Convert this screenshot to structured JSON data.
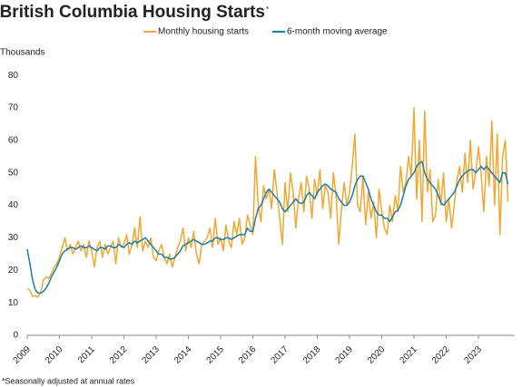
{
  "chart_data": {
    "type": "line",
    "title": "British Columbia Housing Starts",
    "title_note": "*",
    "y_label": "Thousands",
    "footnote": "*Seasonally adjusted at annual rates",
    "categories": [
      "2009",
      null,
      null,
      null,
      null,
      null,
      null,
      null,
      null,
      null,
      null,
      null,
      "2010",
      null,
      null,
      null,
      null,
      null,
      null,
      null,
      null,
      null,
      null,
      null,
      "2011",
      null,
      null,
      null,
      null,
      null,
      null,
      null,
      null,
      null,
      null,
      null,
      "2012",
      null,
      null,
      null,
      null,
      null,
      null,
      null,
      null,
      null,
      null,
      null,
      "2013",
      null,
      null,
      null,
      null,
      null,
      null,
      null,
      null,
      null,
      null,
      null,
      "2014",
      null,
      null,
      null,
      null,
      null,
      null,
      null,
      null,
      null,
      null,
      null,
      "2015",
      null,
      null,
      null,
      null,
      null,
      null,
      null,
      null,
      null,
      null,
      null,
      "2016",
      null,
      null,
      null,
      null,
      null,
      null,
      null,
      null,
      null,
      null,
      null,
      "2017",
      null,
      null,
      null,
      null,
      null,
      null,
      null,
      null,
      null,
      null,
      null,
      "2018",
      null,
      null,
      null,
      null,
      null,
      null,
      null,
      null,
      null,
      null,
      null,
      "2019",
      null,
      null,
      null,
      null,
      null,
      null,
      null,
      null,
      null,
      null,
      null,
      "2020",
      null,
      null,
      null,
      null,
      null,
      null,
      null,
      null,
      null,
      null,
      null,
      "2021",
      null,
      null,
      null,
      null,
      null,
      null,
      null,
      null,
      null,
      null,
      null,
      "2022",
      null,
      null,
      null,
      null,
      null,
      null,
      null,
      null,
      null,
      null,
      null,
      "2023",
      null,
      null,
      null,
      null,
      null,
      null,
      null,
      null,
      null,
      null,
      null
    ],
    "series": [
      {
        "name": "Monthly housing starts",
        "color": "#f0a830",
        "values": [
          14.5,
          13.8,
          12,
          12.2,
          11.8,
          13,
          17,
          18,
          17.5,
          19,
          21,
          22,
          24,
          27,
          30,
          26,
          28,
          25,
          27,
          29,
          26,
          28,
          24,
          29,
          26,
          21,
          27,
          29,
          24,
          28,
          25,
          27,
          29,
          22,
          30,
          27,
          28,
          31,
          25,
          28,
          33,
          27,
          36.5,
          26,
          29,
          27,
          30,
          24,
          23,
          26,
          28,
          24,
          22,
          25,
          21,
          24,
          27,
          29,
          33,
          26,
          30,
          27,
          32,
          25,
          22,
          28,
          29,
          30,
          33,
          27,
          36,
          28,
          30,
          26,
          34,
          29,
          27,
          35,
          31,
          36,
          28,
          30,
          37,
          34,
          31,
          55,
          40,
          35,
          46,
          42,
          45,
          39,
          51,
          44,
          36,
          28,
          47,
          38,
          50,
          44,
          33,
          42,
          47,
          38,
          49,
          45,
          36,
          48,
          43,
          51,
          39,
          46,
          44,
          36,
          50,
          43,
          28,
          39,
          47,
          40,
          44,
          52,
          62,
          40,
          38,
          49,
          34,
          44,
          36,
          41,
          30,
          45,
          38,
          33,
          31,
          40,
          35,
          43,
          38,
          52,
          44,
          47,
          55,
          49,
          70,
          42,
          60,
          35,
          69,
          44,
          51,
          35,
          37,
          48,
          40,
          50,
          35,
          42,
          33,
          40,
          48,
          52,
          44,
          56,
          47,
          60,
          45,
          50,
          58,
          50,
          38,
          55,
          46,
          66,
          40,
          62,
          31,
          55,
          60,
          41
        ]
      },
      {
        "name": "6-month moving average",
        "color": "#1a7fa8",
        "values": [
          26.5,
          22,
          17,
          14,
          13,
          13,
          13.5,
          14.5,
          16,
          18,
          19.5,
          21,
          23,
          25,
          26,
          26.5,
          27,
          27,
          26.5,
          27,
          27.5,
          27,
          27,
          27.5,
          27,
          26.5,
          26,
          27,
          27,
          26.5,
          27.5,
          27.5,
          27,
          27,
          28,
          27.5,
          27,
          28,
          28.5,
          28,
          29,
          28.5,
          29,
          29.5,
          30,
          29,
          28,
          27,
          26,
          25,
          25,
          24,
          24,
          23.5,
          23.5,
          24,
          25,
          26,
          27.5,
          28,
          28.5,
          29,
          29.5,
          29,
          28.5,
          28,
          28,
          28.5,
          29,
          29,
          30,
          30,
          29.5,
          29.5,
          30,
          30,
          29.5,
          30,
          30.5,
          31,
          31,
          31,
          33,
          32,
          32,
          36,
          39,
          40,
          42,
          44,
          45,
          44,
          43,
          42,
          41,
          39,
          38,
          39,
          40,
          41,
          42,
          41,
          40.5,
          41,
          43,
          44,
          43,
          42,
          44,
          45,
          46,
          46.5,
          46,
          45,
          44.5,
          44,
          42,
          41,
          40,
          40,
          41,
          43,
          46,
          48,
          49,
          49,
          47,
          45,
          42,
          40,
          38,
          37,
          37,
          36,
          36,
          35,
          36.5,
          38,
          38.5,
          40,
          43,
          46,
          48,
          49,
          50,
          52,
          53,
          53.5,
          50,
          48,
          47,
          46,
          45,
          43,
          41,
          40,
          41,
          42,
          43,
          44,
          46,
          48,
          49,
          50,
          50.5,
          51,
          51,
          50,
          51,
          52,
          51,
          52,
          51,
          50,
          49,
          48,
          47,
          50,
          50,
          46.5
        ]
      }
    ],
    "ylim": [
      0,
      80
    ],
    "yticks": [
      0,
      10,
      20,
      30,
      40,
      50,
      60,
      70,
      80
    ],
    "grid": false
  }
}
